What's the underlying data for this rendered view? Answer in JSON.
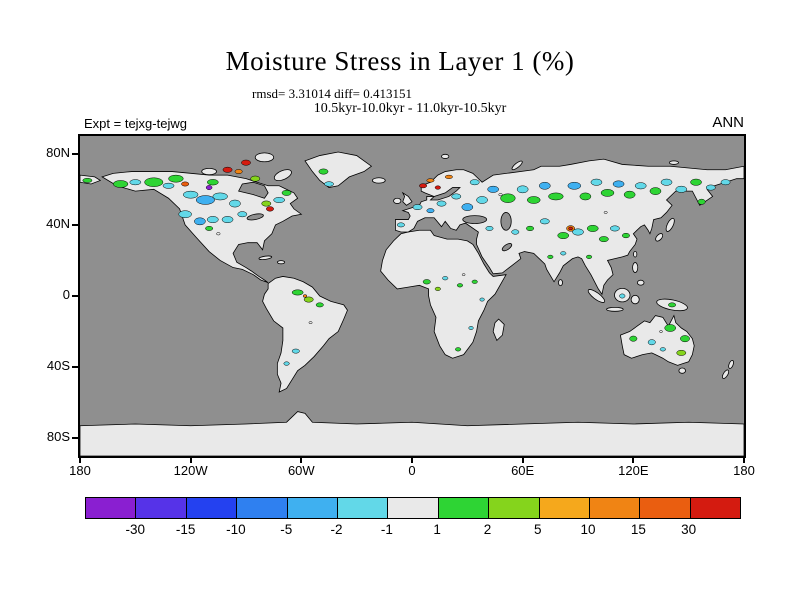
{
  "title": "Moisture Stress in Layer 1 (%)",
  "subtitle": {
    "stats": "rmsd= 3.31014 diff= 0.413151",
    "period": "10.5kyr-10.0kyr - 11.0kyr-10.5kyr"
  },
  "labels": {
    "experiment": "Expt = tejxg-tejwg",
    "season": "ANN"
  },
  "axes": {
    "y_ticks": [
      "80N",
      "40N",
      "0",
      "40S",
      "80S"
    ],
    "x_ticks": [
      "180",
      "120W",
      "60W",
      "0",
      "60E",
      "120E",
      "180"
    ]
  },
  "colorbar": {
    "tick_labels": [
      "-30",
      "-15",
      "-10",
      "-5",
      "-2",
      "-1",
      "1",
      "2",
      "5",
      "10",
      "15",
      "30"
    ]
  },
  "chart_data": {
    "type": "heatmap",
    "title": "Moisture Stress in Layer 1 (%)",
    "rmsd": 3.31014,
    "diff": 0.413151,
    "experiment": "tejxg-tejwg",
    "period_comparison": "10.5kyr-10.0kyr - 11.0kyr-10.5kyr",
    "season": "ANN",
    "projection": "equirectangular",
    "lon_range": [
      -180,
      180
    ],
    "lat_range": [
      -90,
      90
    ],
    "contour_levels": [
      -30,
      -15,
      -10,
      -5,
      -2,
      -1,
      1,
      2,
      5,
      10,
      15,
      30
    ],
    "palette": [
      "#8a1fd1",
      "#5633e8",
      "#2441f0",
      "#2f80f0",
      "#3fb0f0",
      "#62d8e8",
      "#e9e9e9",
      "#2ed434",
      "#85d41c",
      "#f5a81c",
      "#f08414",
      "#ea5e10",
      "#d41b10"
    ],
    "ocean_color": "#8f8f8f",
    "land_color": "#e9e9e9",
    "anomaly_patches": [
      [
        -158,
        63,
        4,
        2,
        7
      ],
      [
        -150,
        64,
        3,
        1.5,
        5
      ],
      [
        -140,
        64,
        5,
        2.5,
        7
      ],
      [
        -132,
        62,
        3,
        1.5,
        5
      ],
      [
        -128,
        66,
        4,
        2,
        7
      ],
      [
        -123,
        63,
        2,
        1.2,
        11
      ],
      [
        -110,
        61,
        1.6,
        1.2,
        0
      ],
      [
        -108,
        64,
        3,
        1.6,
        7
      ],
      [
        -100,
        71,
        2.5,
        1.5,
        12
      ],
      [
        -90,
        75,
        2.5,
        1.5,
        12
      ],
      [
        -94,
        70,
        2,
        1.2,
        10
      ],
      [
        -85,
        66,
        2.5,
        1.5,
        8
      ],
      [
        -120,
        57,
        4,
        2,
        5
      ],
      [
        -112,
        54,
        5,
        2.5,
        4
      ],
      [
        -104,
        56,
        4,
        2,
        5
      ],
      [
        -96,
        52,
        3,
        2,
        5
      ],
      [
        -77,
        49,
        2,
        1.3,
        12
      ],
      [
        -79,
        52,
        2.5,
        1.5,
        8
      ],
      [
        -72,
        54,
        3,
        1.5,
        5
      ],
      [
        -68,
        58,
        2.5,
        1.5,
        7
      ],
      [
        -123,
        46,
        3.5,
        2,
        5
      ],
      [
        -115,
        42,
        3,
        2,
        4
      ],
      [
        -108,
        43,
        3,
        1.8,
        5
      ],
      [
        -100,
        43,
        3,
        1.8,
        5
      ],
      [
        -92,
        46,
        2.5,
        1.5,
        5
      ],
      [
        -110,
        38,
        2,
        1.2,
        7
      ],
      [
        -45,
        63,
        2.5,
        1.3,
        5
      ],
      [
        -48,
        70,
        2.5,
        1.5,
        7
      ],
      [
        -176,
        65,
        2.5,
        1.2,
        7
      ],
      [
        -62,
        2,
        3,
        1.5,
        7
      ],
      [
        -56,
        -2,
        2.5,
        1.5,
        8
      ],
      [
        -58,
        0,
        1,
        0.8,
        10
      ],
      [
        -50,
        -5,
        2,
        1.2,
        7
      ],
      [
        -63,
        -31,
        2,
        1.2,
        5
      ],
      [
        -68,
        -38,
        1.5,
        1,
        5
      ],
      [
        6,
        62,
        2,
        1.2,
        12
      ],
      [
        10,
        65,
        2,
        1,
        10
      ],
      [
        14,
        61,
        1.5,
        1,
        12
      ],
      [
        20,
        67,
        2,
        1,
        10
      ],
      [
        3,
        50,
        2.5,
        1.5,
        5
      ],
      [
        10,
        48,
        2,
        1.2,
        4
      ],
      [
        16,
        52,
        2.5,
        1.5,
        5
      ],
      [
        -6,
        40,
        2,
        1.2,
        5
      ],
      [
        24,
        56,
        2.5,
        1.5,
        5
      ],
      [
        30,
        50,
        3,
        2,
        4
      ],
      [
        38,
        54,
        3,
        2,
        5
      ],
      [
        44,
        60,
        3,
        1.8,
        4
      ],
      [
        34,
        64,
        2.5,
        1.5,
        5
      ],
      [
        52,
        55,
        4,
        2.5,
        7
      ],
      [
        60,
        60,
        3,
        2,
        5
      ],
      [
        66,
        54,
        3.5,
        2,
        7
      ],
      [
        72,
        62,
        3,
        2,
        4
      ],
      [
        78,
        56,
        4,
        2,
        7
      ],
      [
        86,
        38,
        2.2,
        1.6,
        10
      ],
      [
        86,
        38,
        1.1,
        0.8,
        12
      ],
      [
        88,
        62,
        3.5,
        2,
        4
      ],
      [
        94,
        56,
        3,
        2,
        7
      ],
      [
        100,
        64,
        3,
        1.8,
        5
      ],
      [
        106,
        58,
        3.5,
        2,
        7
      ],
      [
        112,
        63,
        3,
        1.8,
        4
      ],
      [
        118,
        57,
        3,
        2,
        7
      ],
      [
        124,
        62,
        3,
        1.8,
        5
      ],
      [
        132,
        59,
        3,
        2,
        7
      ],
      [
        138,
        64,
        3,
        1.8,
        5
      ],
      [
        146,
        60,
        3,
        1.8,
        5
      ],
      [
        154,
        64,
        3,
        1.8,
        7
      ],
      [
        162,
        61,
        2.5,
        1.5,
        5
      ],
      [
        157,
        53,
        2,
        1.5,
        7
      ],
      [
        170,
        64,
        2.5,
        1.5,
        5
      ],
      [
        82,
        34,
        3,
        1.8,
        7
      ],
      [
        90,
        36,
        3,
        1.8,
        5
      ],
      [
        98,
        38,
        3,
        1.8,
        7
      ],
      [
        104,
        32,
        2.5,
        1.5,
        7
      ],
      [
        110,
        38,
        2.5,
        1.5,
        5
      ],
      [
        116,
        34,
        2,
        1.3,
        7
      ],
      [
        72,
        42,
        2.5,
        1.5,
        5
      ],
      [
        64,
        38,
        2,
        1.3,
        7
      ],
      [
        56,
        36,
        2,
        1.3,
        5
      ],
      [
        42,
        38,
        2,
        1.2,
        5
      ],
      [
        75,
        22,
        1.5,
        1,
        7
      ],
      [
        82,
        24,
        1.5,
        1,
        5
      ],
      [
        96,
        22,
        1.5,
        1,
        7
      ],
      [
        114,
        0,
        1.5,
        1.2,
        5
      ],
      [
        141,
        -5,
        2,
        1.2,
        7
      ],
      [
        8,
        8,
        2,
        1.3,
        7
      ],
      [
        14,
        4,
        1.5,
        1,
        8
      ],
      [
        18,
        10,
        1.5,
        1,
        5
      ],
      [
        26,
        6,
        1.5,
        1,
        7
      ],
      [
        34,
        8,
        1.5,
        1,
        7
      ],
      [
        38,
        -2,
        1.2,
        0.9,
        5
      ],
      [
        25,
        -30,
        1.5,
        1,
        7
      ],
      [
        32,
        -18,
        1.2,
        0.9,
        5
      ],
      [
        140,
        -18,
        3,
        2,
        7
      ],
      [
        148,
        -24,
        2.5,
        1.8,
        7
      ],
      [
        146,
        -32,
        2.5,
        1.5,
        8
      ],
      [
        130,
        -26,
        2,
        1.5,
        5
      ],
      [
        120,
        -24,
        2,
        1.5,
        7
      ],
      [
        136,
        -30,
        1.5,
        1,
        5
      ],
      [
        -105,
        35,
        1,
        0.7,
        -1
      ],
      [
        48,
        57,
        1,
        0.7,
        -1
      ],
      [
        105,
        47,
        0.9,
        0.6,
        -1
      ],
      [
        -55,
        -15,
        0.9,
        0.6,
        -1
      ],
      [
        28,
        12,
        0.8,
        0.6,
        -1
      ],
      [
        135,
        -20,
        0.8,
        0.6,
        -1
      ]
    ]
  }
}
